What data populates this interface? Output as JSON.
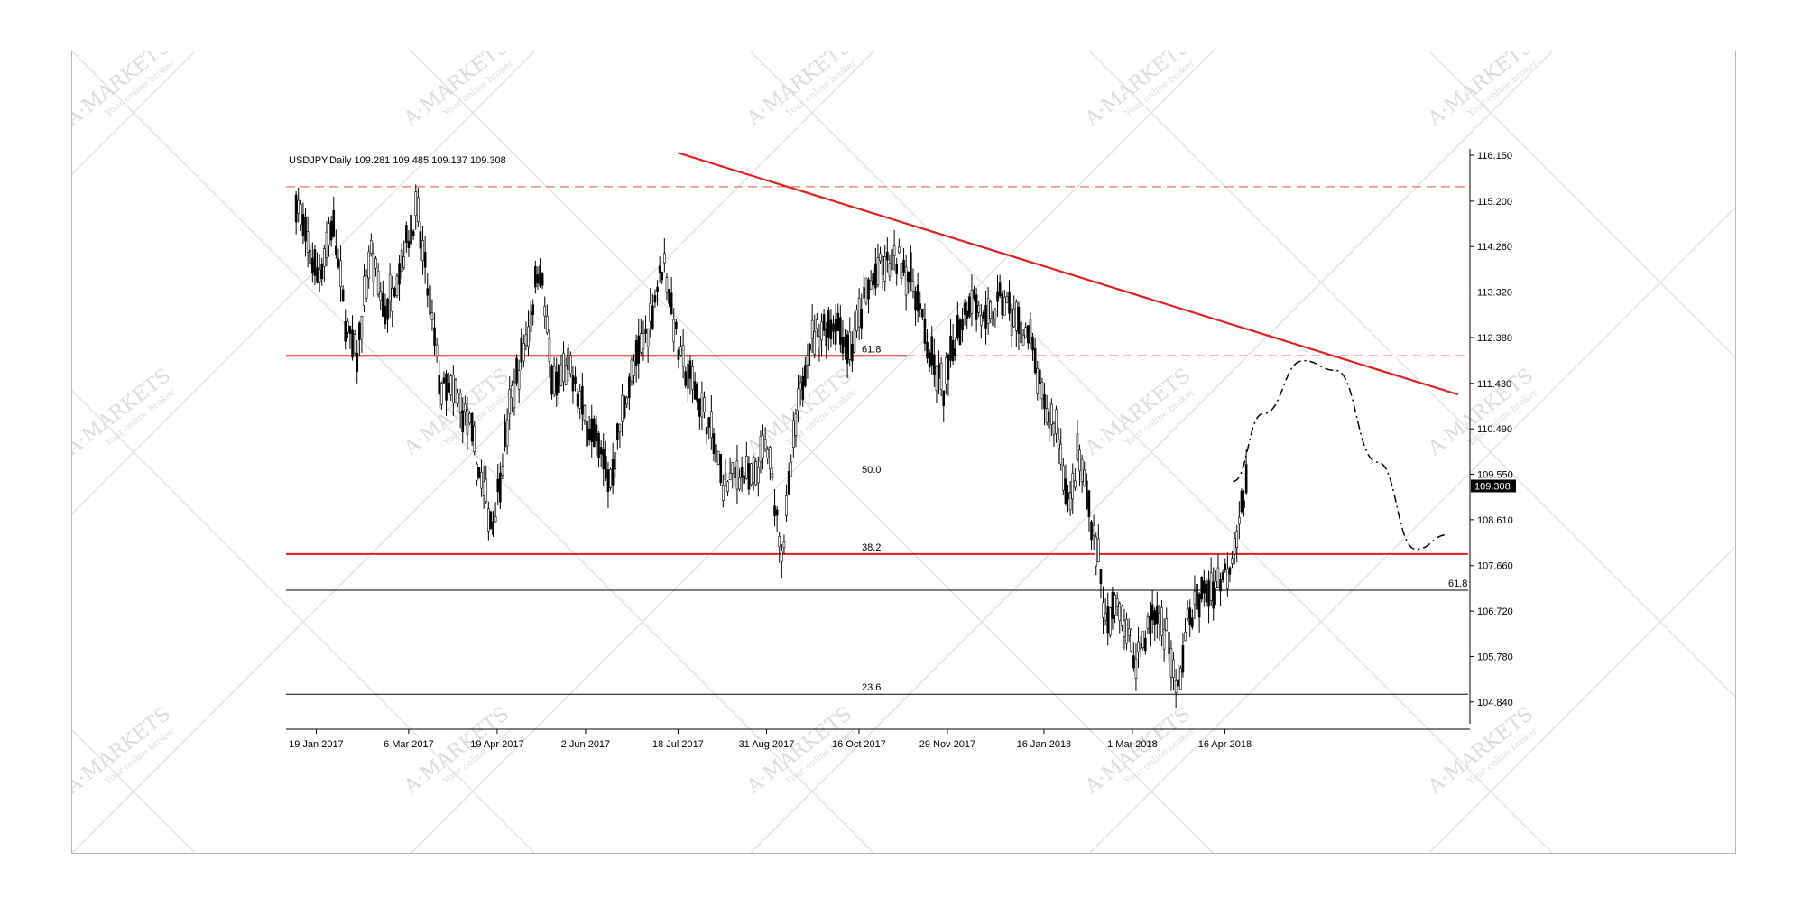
{
  "watermark": {
    "brand": "A·MARKETS",
    "tagline": "Your online broker"
  },
  "chart_data": {
    "type": "candlestick",
    "symbol_header": "USDJPY,Daily  109.281 109.485 109.137 109.308",
    "current_price_label": "109.308",
    "current_price": 109.308,
    "y_ticks": [
      "116.150",
      "115.200",
      "114.260",
      "113.320",
      "112.380",
      "111.430",
      "110.490",
      "109.550",
      "108.610",
      "107.660",
      "106.720",
      "105.780",
      "104.840"
    ],
    "ylim": [
      104.5,
      116.15
    ],
    "x_ticks": [
      "19 Jan 2017",
      "6 Mar 2017",
      "19 Apr 2017",
      "2 Jun 2017",
      "18 Jul 2017",
      "31 Aug 2017",
      "16 Oct 2017",
      "29 Nov 2017",
      "16 Jan 2018",
      "1 Mar 2018",
      "16 Apr 2018"
    ],
    "fib_levels": [
      {
        "label": "61.8",
        "price": 112.0
      },
      {
        "label": "50.0",
        "price": 109.5
      },
      {
        "label": "38.2",
        "price": 107.9
      },
      {
        "label": "23.6",
        "price": 105.0
      },
      {
        "label": "61.8",
        "price": 107.15
      }
    ],
    "horizontal_levels": [
      {
        "price": 115.5,
        "style": "dashed",
        "color": "#e74c4c"
      },
      {
        "price": 112.0,
        "style": "solid",
        "color": "#e02020"
      },
      {
        "price": 107.9,
        "style": "solid",
        "color": "#e02020"
      },
      {
        "price": 107.15,
        "style": "solid",
        "color": "#000000"
      },
      {
        "price": 105.0,
        "style": "solid",
        "color": "#000000"
      },
      {
        "price": 109.308,
        "style": "solid",
        "color": "#c0c0c0"
      }
    ],
    "trendline": {
      "start": {
        "date": "2017-07-18",
        "price": 116.2
      },
      "end": {
        "date": "2018-08-10",
        "price": 111.2
      },
      "color": "#e02020"
    },
    "projection": {
      "style": "dash-dot",
      "path": [
        {
          "date": "2018-04-20",
          "price": 109.4
        },
        {
          "date": "2018-05-05",
          "price": 110.8
        },
        {
          "date": "2018-05-25",
          "price": 111.9
        },
        {
          "date": "2018-06-10",
          "price": 111.7
        },
        {
          "date": "2018-07-01",
          "price": 109.8
        },
        {
          "date": "2018-07-20",
          "price": 108.0
        },
        {
          "date": "2018-08-05",
          "price": 108.3
        }
      ]
    },
    "price_path": [
      {
        "date": "2017-01-09",
        "price": 115.3
      },
      {
        "date": "2017-01-13",
        "price": 114.5
      },
      {
        "date": "2017-01-20",
        "price": 113.6
      },
      {
        "date": "2017-01-27",
        "price": 114.8
      },
      {
        "date": "2017-02-03",
        "price": 112.6
      },
      {
        "date": "2017-02-08",
        "price": 111.9
      },
      {
        "date": "2017-02-15",
        "price": 114.2
      },
      {
        "date": "2017-02-22",
        "price": 112.9
      },
      {
        "date": "2017-03-01",
        "price": 113.8
      },
      {
        "date": "2017-03-10",
        "price": 115.0
      },
      {
        "date": "2017-03-16",
        "price": 113.2
      },
      {
        "date": "2017-03-22",
        "price": 111.3
      },
      {
        "date": "2017-03-29",
        "price": 111.2
      },
      {
        "date": "2017-04-05",
        "price": 110.6
      },
      {
        "date": "2017-04-12",
        "price": 109.2
      },
      {
        "date": "2017-04-17",
        "price": 108.5
      },
      {
        "date": "2017-04-26",
        "price": 111.1
      },
      {
        "date": "2017-05-05",
        "price": 112.6
      },
      {
        "date": "2017-05-10",
        "price": 114.0
      },
      {
        "date": "2017-05-17",
        "price": 111.3
      },
      {
        "date": "2017-05-24",
        "price": 111.8
      },
      {
        "date": "2017-06-01",
        "price": 110.8
      },
      {
        "date": "2017-06-09",
        "price": 110.0
      },
      {
        "date": "2017-06-14",
        "price": 109.4
      },
      {
        "date": "2017-06-22",
        "price": 111.2
      },
      {
        "date": "2017-07-03",
        "price": 112.6
      },
      {
        "date": "2017-07-11",
        "price": 114.0
      },
      {
        "date": "2017-07-19",
        "price": 111.9
      },
      {
        "date": "2017-07-26",
        "price": 111.4
      },
      {
        "date": "2017-08-02",
        "price": 110.6
      },
      {
        "date": "2017-08-10",
        "price": 109.3
      },
      {
        "date": "2017-08-17",
        "price": 109.6
      },
      {
        "date": "2017-08-24",
        "price": 109.4
      },
      {
        "date": "2017-08-31",
        "price": 110.2
      },
      {
        "date": "2017-09-08",
        "price": 107.9
      },
      {
        "date": "2017-09-14",
        "price": 110.4
      },
      {
        "date": "2017-09-21",
        "price": 112.3
      },
      {
        "date": "2017-09-28",
        "price": 112.6
      },
      {
        "date": "2017-10-05",
        "price": 112.7
      },
      {
        "date": "2017-10-12",
        "price": 112.1
      },
      {
        "date": "2017-10-19",
        "price": 113.2
      },
      {
        "date": "2017-10-26",
        "price": 113.8
      },
      {
        "date": "2017-11-06",
        "price": 114.0
      },
      {
        "date": "2017-11-13",
        "price": 113.4
      },
      {
        "date": "2017-11-20",
        "price": 112.0
      },
      {
        "date": "2017-11-27",
        "price": 111.3
      },
      {
        "date": "2017-12-04",
        "price": 112.5
      },
      {
        "date": "2017-12-11",
        "price": 113.3
      },
      {
        "date": "2017-12-18",
        "price": 112.6
      },
      {
        "date": "2017-12-26",
        "price": 113.2
      },
      {
        "date": "2018-01-04",
        "price": 112.6
      },
      {
        "date": "2018-01-09",
        "price": 112.4
      },
      {
        "date": "2018-01-16",
        "price": 110.9
      },
      {
        "date": "2018-01-22",
        "price": 110.6
      },
      {
        "date": "2018-01-29",
        "price": 108.8
      },
      {
        "date": "2018-02-02",
        "price": 110.0
      },
      {
        "date": "2018-02-06",
        "price": 109.2
      },
      {
        "date": "2018-02-12",
        "price": 107.9
      },
      {
        "date": "2018-02-16",
        "price": 106.3
      },
      {
        "date": "2018-02-22",
        "price": 107.0
      },
      {
        "date": "2018-03-02",
        "price": 105.7
      },
      {
        "date": "2018-03-08",
        "price": 106.3
      },
      {
        "date": "2018-03-13",
        "price": 106.7
      },
      {
        "date": "2018-03-19",
        "price": 106.2
      },
      {
        "date": "2018-03-23",
        "price": 104.9
      },
      {
        "date": "2018-03-29",
        "price": 106.6
      },
      {
        "date": "2018-04-05",
        "price": 107.1
      },
      {
        "date": "2018-04-12",
        "price": 107.3
      },
      {
        "date": "2018-04-18",
        "price": 107.6
      },
      {
        "date": "2018-04-23",
        "price": 108.6
      },
      {
        "date": "2018-04-27",
        "price": 109.3
      }
    ]
  }
}
